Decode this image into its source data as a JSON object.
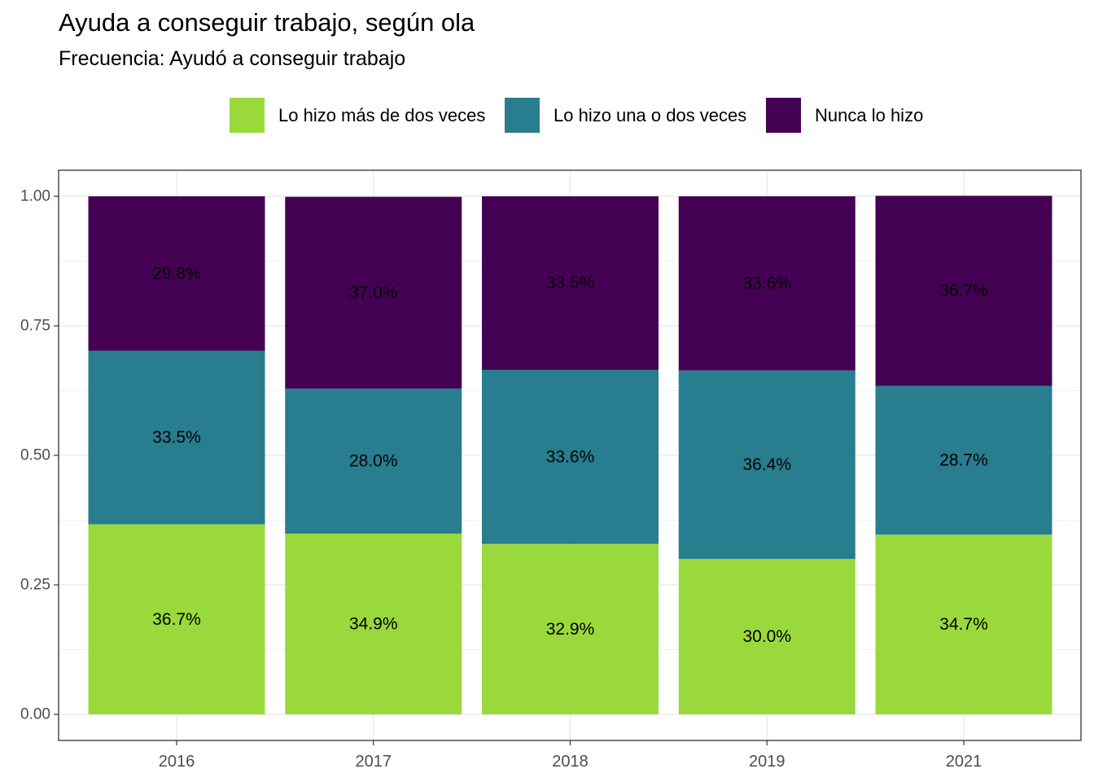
{
  "title": "Ayuda a conseguir trabajo, según ola",
  "subtitle": "Frecuencia: Ayudó a conseguir trabajo",
  "legend": {
    "items": [
      {
        "label": "Lo hizo más de dos veces",
        "color": "#9ad93c"
      },
      {
        "label": "Lo hizo una o dos veces",
        "color": "#287d8e"
      },
      {
        "label": "Nunca lo hizo",
        "color": "#440154"
      }
    ]
  },
  "chart_data": {
    "type": "bar",
    "stacked": true,
    "title": "Ayuda a conseguir trabajo, según ola",
    "subtitle": "Frecuencia: Ayudó a conseguir trabajo",
    "xlabel": "",
    "ylabel": "",
    "categories": [
      "2016",
      "2017",
      "2018",
      "2019",
      "2021"
    ],
    "ylim": [
      0,
      1
    ],
    "yticks": [
      "0.00",
      "0.25",
      "0.50",
      "0.75",
      "1.00"
    ],
    "grid": true,
    "legend_position": "top",
    "series": [
      {
        "name": "Lo hizo más de dos veces",
        "color": "#9ad93c",
        "values": [
          0.367,
          0.349,
          0.329,
          0.3,
          0.347
        ],
        "labels": [
          "36.7%",
          "34.9%",
          "32.9%",
          "30.0%",
          "34.7%"
        ]
      },
      {
        "name": "Lo hizo una o dos veces",
        "color": "#287d8e",
        "values": [
          0.335,
          0.28,
          0.336,
          0.364,
          0.287
        ],
        "labels": [
          "33.5%",
          "28.0%",
          "33.6%",
          "36.4%",
          "28.7%"
        ]
      },
      {
        "name": "Nunca lo hizo",
        "color": "#440154",
        "values": [
          0.298,
          0.37,
          0.335,
          0.336,
          0.367
        ],
        "labels": [
          "29.8%",
          "37.0%",
          "33.5%",
          "33.6%",
          "36.7%"
        ]
      }
    ]
  }
}
